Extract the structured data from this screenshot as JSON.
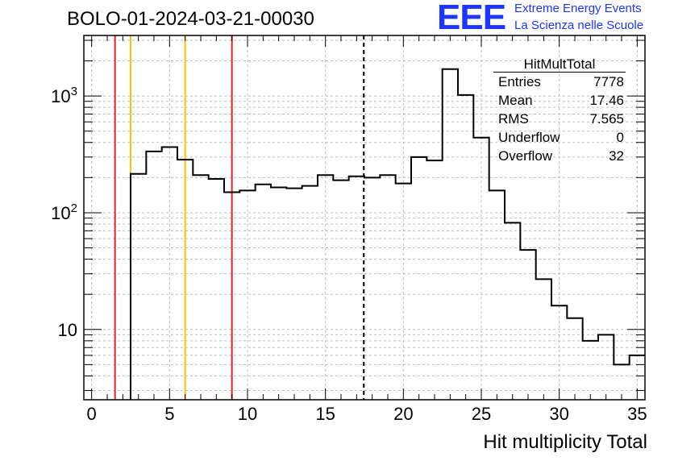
{
  "title": "BOLO-01-2024-03-21-00030",
  "logo": {
    "mark": "EEE",
    "line1": "Extreme Energy Events",
    "line2": "La Scienza nelle Scuole",
    "color": "#1d35ff"
  },
  "stats": {
    "name": "HitMultTotal",
    "rows": [
      {
        "label": "Entries",
        "value": "7778"
      },
      {
        "label": "Mean",
        "value": "17.46"
      },
      {
        "label": "RMS",
        "value": "7.565"
      },
      {
        "label": "Underflow",
        "value": "0"
      },
      {
        "label": "Overflow",
        "value": "32"
      }
    ]
  },
  "chart_data": {
    "type": "histogram",
    "title": "BOLO-01-2024-03-21-00030",
    "xlabel": "Hit multiplicity Total",
    "ylabel": "",
    "x_scale": "linear",
    "y_scale": "log",
    "xlim": [
      -0.5,
      35.5
    ],
    "ylim": [
      2.5,
      3300
    ],
    "x_ticks": [
      "0",
      "5",
      "10",
      "15",
      "20",
      "25",
      "30",
      "35"
    ],
    "y_ticks": [
      "10",
      "10^2",
      "10^3"
    ],
    "grid": true,
    "bin_edges_start": 2.5,
    "bin_width": 1,
    "counts": [
      215,
      335,
      365,
      285,
      210,
      195,
      150,
      155,
      175,
      165,
      162,
      170,
      210,
      190,
      205,
      200,
      210,
      178,
      300,
      280,
      1700,
      1020,
      440,
      155,
      82,
      48,
      27,
      16,
      12.5,
      8,
      9,
      5,
      6
    ],
    "vertical_lines": [
      {
        "x": 1.5,
        "color": "#e8202a",
        "style": "solid"
      },
      {
        "x": 2.5,
        "color": "#f2c40c",
        "style": "solid"
      },
      {
        "x": 6.0,
        "color": "#f2c40c",
        "style": "solid"
      },
      {
        "x": 9.0,
        "color": "#e8202a",
        "style": "solid"
      },
      {
        "x": 17.46,
        "color": "#000000",
        "style": "dashed"
      }
    ]
  }
}
